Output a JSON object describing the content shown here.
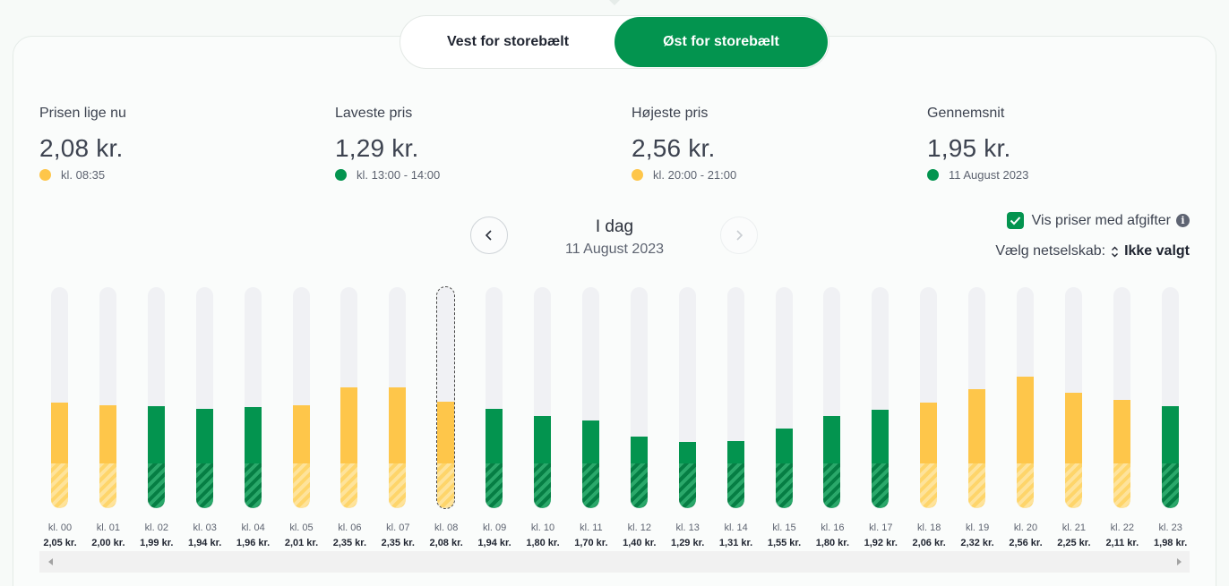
{
  "region_toggle": {
    "west_label": "Vest for storebælt",
    "east_label": "Øst for storebælt",
    "active": "east"
  },
  "stats": {
    "current": {
      "label": "Prisen lige nu",
      "value": "2,08 kr.",
      "sub": "kl. 08:35",
      "dot_color": "#fec64a"
    },
    "lowest": {
      "label": "Laveste pris",
      "value": "1,29 kr.",
      "sub": "kl. 13:00 - 14:00",
      "dot_color": "#03944f"
    },
    "highest": {
      "label": "Højeste pris",
      "value": "2,56 kr.",
      "sub": "kl. 20:00 - 21:00",
      "dot_color": "#fec64a"
    },
    "average": {
      "label": "Gennemsnit",
      "value": "1,95 kr.",
      "sub": "11 August 2023",
      "dot_color": "#03944f"
    }
  },
  "date_nav": {
    "title": "I dag",
    "date": "11 August 2023"
  },
  "options": {
    "vat_label": "Vis priser med afgifter",
    "vat_checked": true,
    "provider_label": "Vælg netselskab:",
    "provider_value": "Ikke valgt"
  },
  "colors": {
    "green": "#03944f",
    "yellow": "#fec64a",
    "track": "#f0f1f4"
  },
  "chart_data": {
    "type": "bar",
    "current_hour_index": 8,
    "ylim": [
      0,
      4.3
    ],
    "hours": [
      {
        "label": "kl. 00",
        "value": 2.05,
        "price": "2,05 kr.",
        "color": "yellow"
      },
      {
        "label": "kl. 01",
        "value": 2.0,
        "price": "2,00 kr.",
        "color": "yellow"
      },
      {
        "label": "kl. 02",
        "value": 1.99,
        "price": "1,99 kr.",
        "color": "green"
      },
      {
        "label": "kl. 03",
        "value": 1.94,
        "price": "1,94 kr.",
        "color": "green"
      },
      {
        "label": "kl. 04",
        "value": 1.96,
        "price": "1,96 kr.",
        "color": "green"
      },
      {
        "label": "kl. 05",
        "value": 2.01,
        "price": "2,01 kr.",
        "color": "yellow"
      },
      {
        "label": "kl. 06",
        "value": 2.35,
        "price": "2,35 kr.",
        "color": "yellow"
      },
      {
        "label": "kl. 07",
        "value": 2.35,
        "price": "2,35 kr.",
        "color": "yellow"
      },
      {
        "label": "kl. 08",
        "value": 2.08,
        "price": "2,08 kr.",
        "color": "yellow"
      },
      {
        "label": "kl. 09",
        "value": 1.94,
        "price": "1,94 kr.",
        "color": "green"
      },
      {
        "label": "kl. 10",
        "value": 1.8,
        "price": "1,80 kr.",
        "color": "green"
      },
      {
        "label": "kl. 11",
        "value": 1.7,
        "price": "1,70 kr.",
        "color": "green"
      },
      {
        "label": "kl. 12",
        "value": 1.4,
        "price": "1,40 kr.",
        "color": "green"
      },
      {
        "label": "kl. 13",
        "value": 1.29,
        "price": "1,29 kr.",
        "color": "green"
      },
      {
        "label": "kl. 14",
        "value": 1.31,
        "price": "1,31 kr.",
        "color": "green"
      },
      {
        "label": "kl. 15",
        "value": 1.55,
        "price": "1,55 kr.",
        "color": "green"
      },
      {
        "label": "kl. 16",
        "value": 1.8,
        "price": "1,80 kr.",
        "color": "green"
      },
      {
        "label": "kl. 17",
        "value": 1.92,
        "price": "1,92 kr.",
        "color": "green"
      },
      {
        "label": "kl. 18",
        "value": 2.06,
        "price": "2,06 kr.",
        "color": "yellow"
      },
      {
        "label": "kl. 19",
        "value": 2.32,
        "price": "2,32 kr.",
        "color": "yellow"
      },
      {
        "label": "kl. 20",
        "value": 2.56,
        "price": "2,56 kr.",
        "color": "yellow"
      },
      {
        "label": "kl. 21",
        "value": 2.25,
        "price": "2,25 kr.",
        "color": "yellow"
      },
      {
        "label": "kl. 22",
        "value": 2.11,
        "price": "2,11 kr.",
        "color": "yellow"
      },
      {
        "label": "kl. 23",
        "value": 1.98,
        "price": "1,98 kr.",
        "color": "green"
      }
    ]
  }
}
